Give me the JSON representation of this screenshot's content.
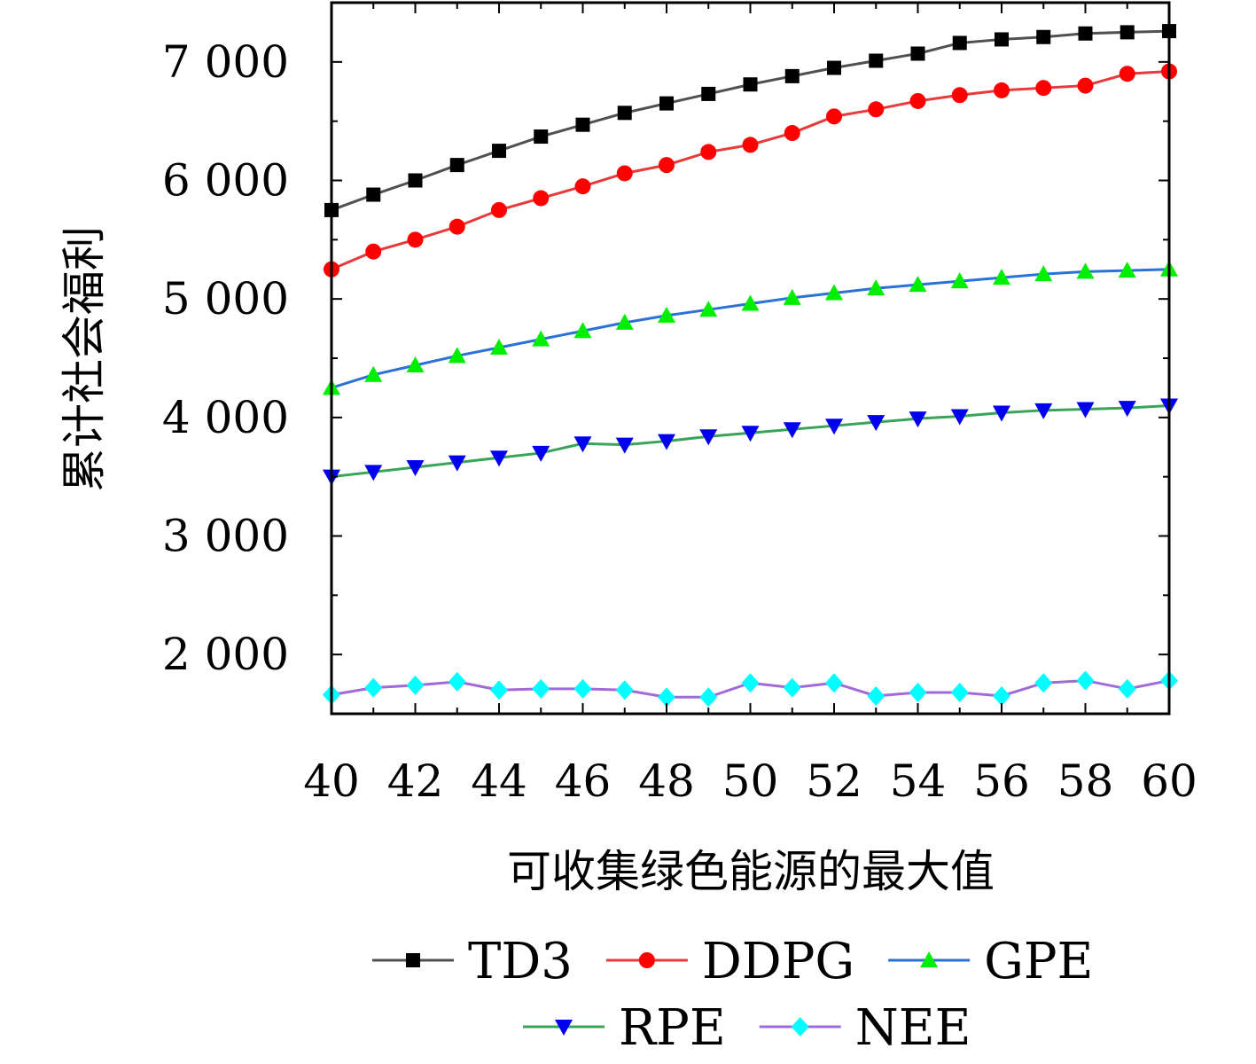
{
  "chart_data": {
    "type": "line",
    "xlabel": "可收集绿色能源的最大值",
    "ylabel": "累计社会福利",
    "xlim": [
      40,
      60
    ],
    "ylim": [
      1500,
      7500
    ],
    "x_ticks": [
      40,
      42,
      44,
      46,
      48,
      50,
      52,
      54,
      56,
      58,
      60
    ],
    "x_tick_labels": [
      "40",
      "42",
      "44",
      "46",
      "48",
      "50",
      "52",
      "54",
      "56",
      "58",
      "60"
    ],
    "y_ticks": [
      2000,
      3000,
      4000,
      5000,
      6000,
      7000
    ],
    "y_tick_labels": [
      "2 000",
      "3 000",
      "4 000",
      "5 000",
      "6 000",
      "7 000"
    ],
    "grid": false,
    "legend_position": "bottom",
    "x": [
      40,
      41,
      42,
      43,
      44,
      45,
      46,
      47,
      48,
      49,
      50,
      51,
      52,
      53,
      54,
      55,
      56,
      57,
      58,
      59,
      60
    ],
    "series": [
      {
        "name": "TD3",
        "line_color": "#505050",
        "marker": "square",
        "marker_color": "#000000",
        "values": [
          5750,
          5880,
          6000,
          6130,
          6250,
          6370,
          6470,
          6570,
          6650,
          6730,
          6810,
          6880,
          6950,
          7010,
          7070,
          7160,
          7190,
          7210,
          7240,
          7250,
          7260
        ]
      },
      {
        "name": "DDPG",
        "line_color": "#e83a3a",
        "marker": "circle",
        "marker_color": "#ff0000",
        "values": [
          5250,
          5400,
          5500,
          5610,
          5750,
          5850,
          5950,
          6060,
          6130,
          6240,
          6300,
          6400,
          6540,
          6600,
          6670,
          6720,
          6760,
          6780,
          6800,
          6900,
          6920
        ]
      },
      {
        "name": "GPE",
        "line_color": "#2a72d6",
        "marker": "triangle-up",
        "marker_color": "#00ee00",
        "values": [
          4250,
          4360,
          4440,
          4520,
          4590,
          4660,
          4730,
          4800,
          4860,
          4910,
          4960,
          5010,
          5050,
          5090,
          5120,
          5150,
          5180,
          5210,
          5230,
          5240,
          5250
        ]
      },
      {
        "name": "RPE",
        "line_color": "#3aa35a",
        "marker": "triangle-down",
        "marker_color": "#0000ee",
        "values": [
          3500,
          3540,
          3580,
          3620,
          3660,
          3700,
          3780,
          3770,
          3800,
          3840,
          3870,
          3900,
          3930,
          3960,
          3990,
          4010,
          4040,
          4060,
          4070,
          4080,
          4100
        ]
      },
      {
        "name": "NEE",
        "line_color": "#a06ad8",
        "marker": "diamond",
        "marker_color": "#00ffff",
        "values": [
          1660,
          1720,
          1740,
          1770,
          1700,
          1710,
          1710,
          1700,
          1640,
          1640,
          1760,
          1720,
          1760,
          1650,
          1680,
          1680,
          1650,
          1760,
          1780,
          1710,
          1780
        ]
      }
    ]
  }
}
